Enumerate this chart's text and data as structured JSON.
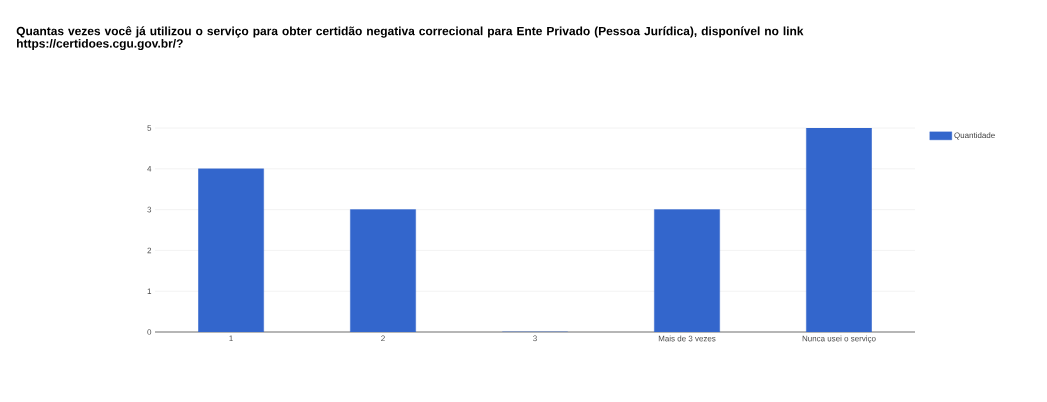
{
  "chart_data": {
    "type": "bar",
    "title": "Quantas vezes você já utilizou o serviço para obter certidão negativa correcional para Ente Privado (Pessoa Jurídica), disponível no link https://certidoes.cgu.gov.br/?",
    "categories": [
      "1",
      "2",
      "3",
      "Mais de 3 vezes",
      "Nunca usei o serviço"
    ],
    "series": [
      {
        "name": "Quantidade",
        "color": "#3366cc",
        "values": [
          4,
          3,
          0,
          3,
          5
        ]
      }
    ],
    "ylim": [
      0,
      5
    ],
    "yticks": [
      0,
      1,
      2,
      3,
      4,
      5
    ],
    "grid": "y",
    "legend": "right"
  }
}
